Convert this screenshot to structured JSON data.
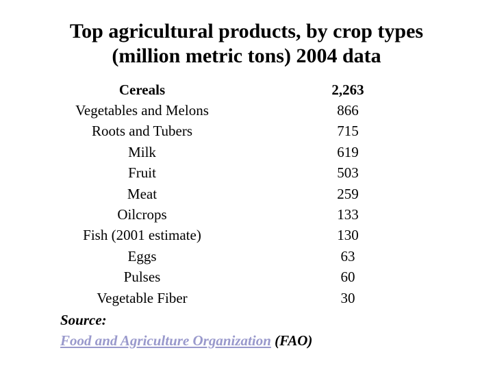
{
  "title": {
    "line1": "Top agricultural products, by crop types",
    "line2": "(million metric tons) 2004 data"
  },
  "header": {
    "label": "Cereals",
    "value": "2,263"
  },
  "rows": [
    {
      "label": "Vegetables and Melons",
      "value": "866"
    },
    {
      "label": "Roots and Tubers",
      "value": "715"
    },
    {
      "label": "Milk",
      "value": "619"
    },
    {
      "label": "Fruit",
      "value": "503"
    },
    {
      "label": "Meat",
      "value": "259"
    },
    {
      "label": "Oilcrops",
      "value": "133"
    },
    {
      "label": "Fish (2001 estimate)",
      "value": "130"
    },
    {
      "label": "Eggs",
      "value": "63"
    },
    {
      "label": "Pulses",
      "value": "60"
    },
    {
      "label": "Vegetable Fiber",
      "value": "30"
    }
  ],
  "source": {
    "label": "Source:",
    "link_text": "Food and Agriculture Organization",
    "suffix": " (FAO)"
  },
  "colors": {
    "text": "#000000",
    "link": "#9999cc",
    "background": "#ffffff"
  }
}
